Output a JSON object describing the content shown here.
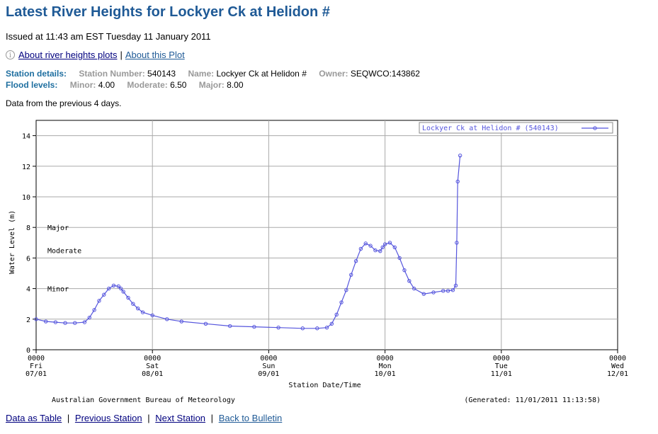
{
  "page": {
    "title": "Latest River Heights for Lockyer Ck at Helidon #",
    "issued": "Issued at 11:43 am EST Tuesday 11 January 2011",
    "links": {
      "about_plots": "About river heights plots",
      "separator": "|",
      "about_this_plot": "About this Plot"
    },
    "station_details": {
      "label": "Station details:",
      "number_label": "Station Number:",
      "number": "540143",
      "name_label": "Name:",
      "name": "Lockyer Ck at Helidon #",
      "owner_label": "Owner:",
      "owner": "SEQWCO:143862"
    },
    "flood_levels": {
      "label": "Flood levels:",
      "minor_label": "Minor:",
      "minor": "4.00",
      "moderate_label": "Moderate:",
      "moderate": "6.50",
      "major_label": "Major:",
      "major": "8.00"
    },
    "data_note": "Data from the previous 4 days.",
    "footer_links": [
      "Data as Table",
      "Previous Station",
      "Next Station",
      "Back to Bulletin"
    ],
    "colors": {
      "title": "#1f5a96",
      "label_blue": "#1f6fa0",
      "series": "#5555dd"
    }
  },
  "chart_data": {
    "type": "line",
    "xlabel": "Station Date/Time",
    "ylabel": "Water Level (m)",
    "ylim": [
      0,
      15
    ],
    "yticks": [
      "0",
      "2",
      "4",
      "6",
      "8",
      "10",
      "12",
      "14"
    ],
    "xlim": [
      0,
      120
    ],
    "xticks": [
      {
        "time": "0000",
        "day": "Fri",
        "date": "07/01"
      },
      {
        "time": "0000",
        "day": "Sat",
        "date": "08/01"
      },
      {
        "time": "0000",
        "day": "Sun",
        "date": "09/01"
      },
      {
        "time": "0000",
        "day": "Mon",
        "date": "10/01"
      },
      {
        "time": "0000",
        "day": "Tue",
        "date": "11/01"
      },
      {
        "time": "0000",
        "day": "Wed",
        "date": "12/01"
      }
    ],
    "grid": true,
    "legend": "top-right",
    "annotations": [
      {
        "label": "Major",
        "y": 8
      },
      {
        "label": "Moderate",
        "y": 6.5
      },
      {
        "label": "Minor",
        "y": 4
      }
    ],
    "footer_left": "Australian Government Bureau of Meteorology",
    "footer_right": "(Generated: 11/01/2011 11:13:58)",
    "series": [
      {
        "name": "Lockyer Ck at Helidon # (540143)",
        "x": [
          0,
          2,
          4,
          6,
          8,
          10,
          11,
          12,
          13,
          14,
          15,
          16,
          17,
          17.5,
          18,
          19,
          20,
          21,
          22,
          24,
          27,
          30,
          35,
          40,
          45,
          50,
          55,
          58,
          60,
          61,
          62,
          63,
          64,
          65,
          66,
          67,
          68,
          69,
          70,
          71,
          71.5,
          72,
          73,
          74,
          75,
          76,
          77,
          78,
          80,
          82,
          84,
          85,
          86,
          86.6,
          86.8,
          87,
          87.5
        ],
        "values": [
          2.0,
          1.85,
          1.8,
          1.75,
          1.75,
          1.8,
          2.1,
          2.6,
          3.2,
          3.6,
          4.0,
          4.2,
          4.15,
          4.0,
          3.8,
          3.4,
          3.0,
          2.7,
          2.45,
          2.25,
          2.0,
          1.85,
          1.7,
          1.55,
          1.5,
          1.45,
          1.4,
          1.4,
          1.45,
          1.7,
          2.3,
          3.1,
          3.9,
          4.9,
          5.8,
          6.6,
          6.95,
          6.8,
          6.5,
          6.45,
          6.7,
          6.9,
          7.0,
          6.7,
          6.0,
          5.2,
          4.5,
          4.0,
          3.65,
          3.75,
          3.85,
          3.85,
          3.9,
          4.2,
          7.0,
          11.0,
          12.7
        ]
      }
    ]
  }
}
